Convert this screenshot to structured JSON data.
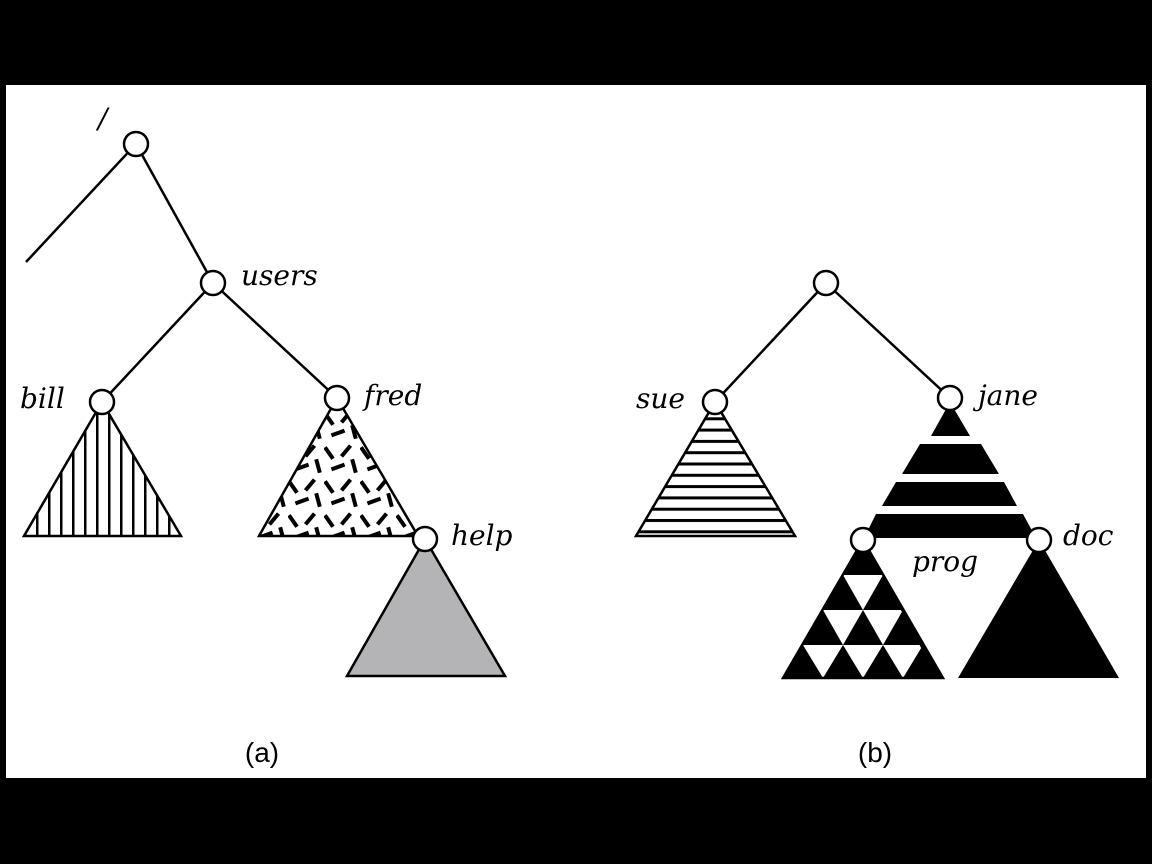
{
  "tree_a": {
    "root_label": "/",
    "users_label": "users",
    "bill_label": "bill",
    "fred_label": "fred",
    "help_label": "help",
    "caption": "(a)"
  },
  "tree_b": {
    "sue_label": "sue",
    "jane_label": "jane",
    "prog_label": "prog",
    "doc_label": "doc",
    "caption": "(b)"
  },
  "colors": {
    "background": "#000000",
    "panel": "#ffffff",
    "ink": "#000000",
    "help_subtree_fill": "#b4b3b5"
  }
}
